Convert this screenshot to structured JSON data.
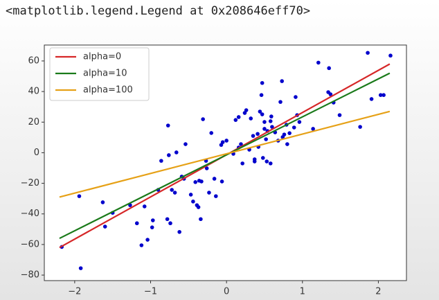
{
  "output_text": "<matplotlib.legend.Legend at 0x208646eff70>",
  "chart_data": {
    "type": "scatter",
    "color": "#0000cc",
    "xlim": [
      -2.4,
      2.37
    ],
    "ylim": [
      -83.6,
      70.4
    ],
    "xticks": [
      {
        "value": -2,
        "label": "−2"
      },
      {
        "value": -1,
        "label": "−1"
      },
      0,
      1,
      2
    ],
    "yticks": [
      {
        "value": -80,
        "label": "−80"
      },
      {
        "value": -60,
        "label": "−60"
      },
      {
        "value": -40,
        "label": "−40"
      },
      {
        "value": -20,
        "label": "−20"
      },
      0,
      20,
      40,
      60
    ],
    "legend": "upper left",
    "x": [
      -2.17,
      -1.94,
      -1.92,
      -1.63,
      -1.6,
      -1.5,
      -1.27,
      -1.18,
      -1.12,
      -1.08,
      -1.04,
      -0.97,
      -0.98,
      -0.9,
      -0.86,
      -0.78,
      -0.77,
      -0.76,
      -0.74,
      -0.72,
      -0.68,
      -0.66,
      -0.62,
      -0.59,
      -0.56,
      -0.54,
      -0.47,
      -0.44,
      -0.41,
      -0.39,
      -0.37,
      -0.36,
      -0.34,
      -0.33,
      -0.31,
      -0.27,
      -0.26,
      -0.23,
      -0.2,
      -0.16,
      -0.14,
      -0.06,
      -0.07,
      -0.05,
      0.0,
      0.09,
      0.12,
      0.16,
      0.16,
      0.19,
      0.21,
      0.24,
      0.26,
      0.3,
      0.32,
      0.35,
      0.37,
      0.37,
      0.41,
      0.42,
      0.44,
      0.46,
      0.47,
      0.48,
      0.5,
      0.5,
      0.52,
      0.53,
      0.54,
      0.58,
      0.58,
      0.59,
      0.6,
      0.64,
      0.68,
      0.71,
      0.73,
      0.74,
      0.76,
      0.79,
      0.8,
      0.83,
      0.89,
      0.91,
      0.93,
      0.96,
      1.14,
      1.21,
      1.35,
      1.34,
      1.37,
      1.41,
      1.49,
      1.76,
      1.86,
      1.91,
      2.03,
      2.07,
      2.16,
      0.47
    ],
    "values": [
      -61.6,
      -28.4,
      -75.5,
      -32.4,
      -48.3,
      -39.3,
      -34.3,
      -46.1,
      -60.5,
      -35.1,
      -56.9,
      -44.2,
      -48.8,
      -24.3,
      -5.3,
      -43.4,
      17.8,
      -1.6,
      -46.1,
      -24.3,
      -26.1,
      0.2,
      -51.8,
      -15.6,
      -17.0,
      5.6,
      -27.4,
      -31.9,
      -19.2,
      -34.3,
      -35.6,
      -18.3,
      -43.4,
      -18.8,
      21.9,
      -5.3,
      -10.2,
      -26.1,
      12.9,
      -17.0,
      -28.4,
      -18.8,
      5.1,
      6.9,
      7.9,
      -0.7,
      21.4,
      23.3,
      3.4,
      5.6,
      -7.0,
      26.0,
      27.8,
      2.0,
      22.4,
      11.0,
      -4.3,
      -5.7,
      12.3,
      3.8,
      26.9,
      37.7,
      25.1,
      -3.4,
      15.6,
      20.1,
      8.8,
      -5.7,
      14.2,
      -7.0,
      20.6,
      23.7,
      16.9,
      13.3,
      7.9,
      33.2,
      46.8,
      10.2,
      11.9,
      18.3,
      5.6,
      12.8,
      16.5,
      36.4,
      24.6,
      20.1,
      15.6,
      58.9,
      55.3,
      39.6,
      38.2,
      32.8,
      24.6,
      16.9,
      65.3,
      35.1,
      37.7,
      37.7,
      63.5,
      45.6
    ],
    "lines": [
      {
        "name": "alpha=0",
        "color": "#d62728",
        "x": [
          -2.2,
          2.15
        ],
        "values": [
          -62,
          58
        ]
      },
      {
        "name": "alpha=10",
        "color": "#1a7a1a",
        "x": [
          -2.2,
          2.15
        ],
        "values": [
          -56,
          52
        ]
      },
      {
        "name": "alpha=100",
        "color": "#e6a117",
        "x": [
          -2.2,
          2.15
        ],
        "values": [
          -29,
          27
        ]
      }
    ]
  }
}
